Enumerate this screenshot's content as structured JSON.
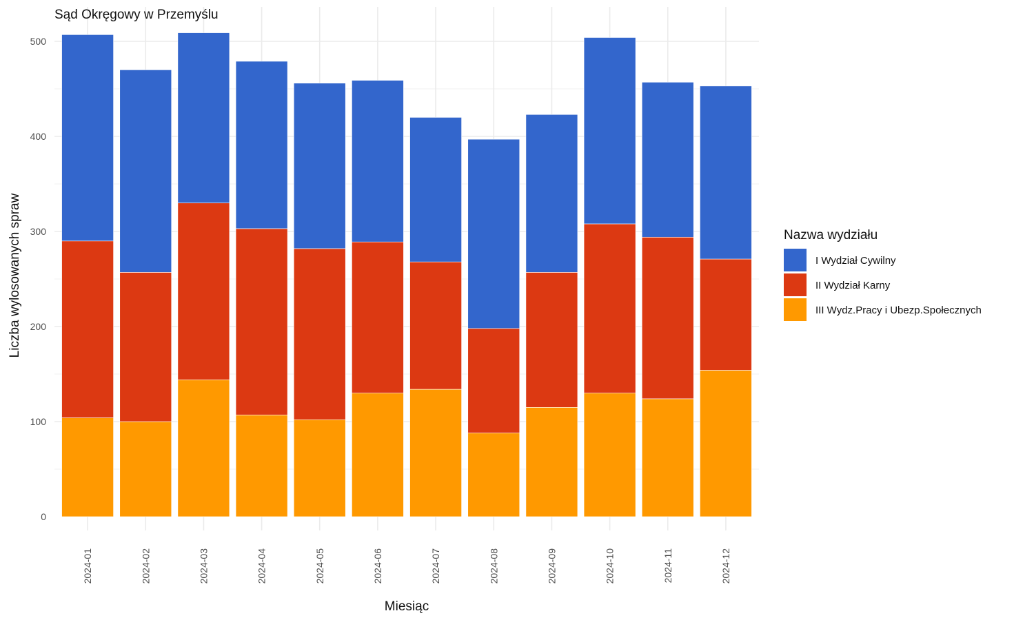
{
  "chart_data": {
    "type": "bar",
    "stacked": true,
    "title": "Sąd Okręgowy w Przemyślu",
    "xlabel": "Miesiąc",
    "ylabel": "Liczba wylosowanych spraw",
    "ylim": [
      0,
      520
    ],
    "yticks": [
      0,
      100,
      200,
      300,
      400,
      500
    ],
    "grid": true,
    "legend_title": "Nazwa wydziału",
    "legend_position": "right",
    "categories": [
      "2024-01",
      "2024-02",
      "2024-03",
      "2024-04",
      "2024-05",
      "2024-06",
      "2024-07",
      "2024-08",
      "2024-09",
      "2024-10",
      "2024-11",
      "2024-12"
    ],
    "series": [
      {
        "name": "III Wydz.Pracy i Ubezp.Społecznych",
        "color": "#FF9900",
        "values": [
          104,
          100,
          144,
          107,
          102,
          130,
          134,
          88,
          115,
          130,
          124,
          154
        ]
      },
      {
        "name": "II Wydział Karny",
        "color": "#DC3912",
        "values": [
          186,
          157,
          186,
          196,
          180,
          159,
          134,
          110,
          142,
          178,
          170,
          117
        ]
      },
      {
        "name": "I Wydział Cywilny",
        "color": "#3366CC",
        "values": [
          217,
          213,
          179,
          176,
          174,
          170,
          152,
          199,
          166,
          196,
          163,
          182
        ]
      }
    ],
    "legend_order": [
      "I Wydział Cywilny",
      "II Wydział Karny",
      "III Wydz.Pracy i Ubezp.Społecznych"
    ]
  }
}
